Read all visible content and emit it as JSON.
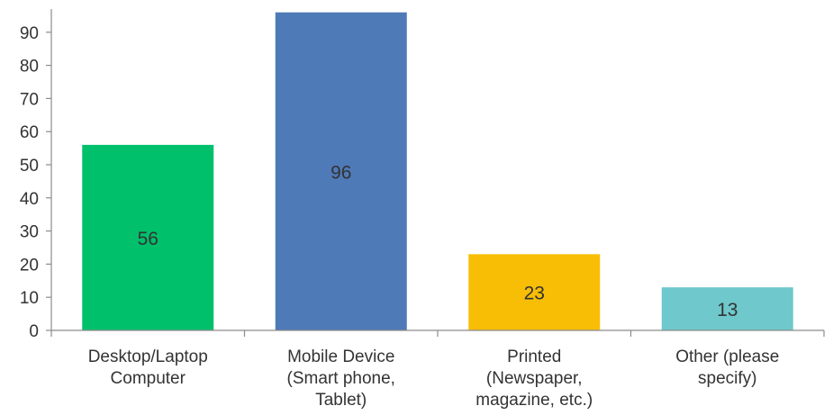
{
  "chart_data": {
    "type": "bar",
    "title": "",
    "xlabel": "",
    "ylabel": "",
    "ylim": [
      0,
      97
    ],
    "yticks": [
      0,
      10,
      20,
      30,
      40,
      50,
      60,
      70,
      80,
      90
    ],
    "grid": false,
    "legend": "none",
    "categories": [
      [
        "Desktop/Laptop",
        "Computer"
      ],
      [
        "Mobile Device",
        "(Smart phone,",
        "Tablet)"
      ],
      [
        "Printed",
        "(Newspaper,",
        "magazine, etc.)"
      ],
      [
        "Other (please",
        "specify)"
      ]
    ],
    "values": [
      56,
      96,
      23,
      13
    ],
    "colors": [
      "#00c06b",
      "#4f7ab8",
      "#f8be05",
      "#6fc8cb"
    ],
    "data_labels": [
      "56",
      "96",
      "23",
      "13"
    ]
  }
}
